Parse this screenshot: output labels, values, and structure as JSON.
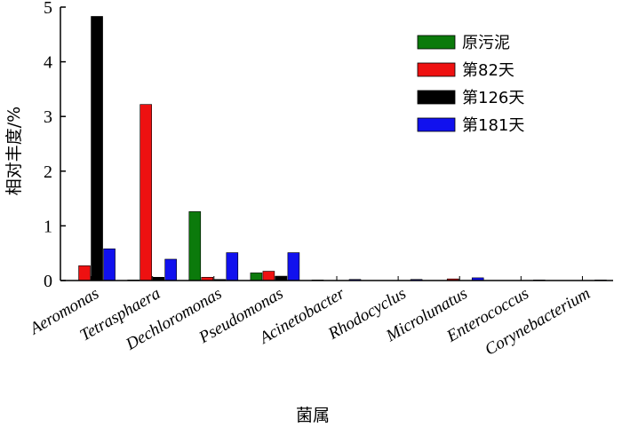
{
  "chart_data": {
    "type": "bar",
    "title": "",
    "xlabel": "菌属",
    "ylabel": "相对丰度/%",
    "ylim": [
      0,
      5
    ],
    "yticks": [
      "0",
      "1",
      "2",
      "3",
      "4",
      "5"
    ],
    "grid": false,
    "legend_position": "top-right",
    "categories": [
      "Aeromonas",
      "Tetrasphaera",
      "Dechloromonas",
      "Pseudomonas",
      "Acinetobacter",
      "Rhodocyclus",
      "Microlunatus",
      "Enterococcus",
      "Corynebacterium"
    ],
    "series": [
      {
        "name": "原污泥",
        "color": "#0b7a0b",
        "values": [
          0.0,
          0.01,
          1.26,
          0.14,
          0.01,
          0.0,
          0.0,
          0.0,
          0.0
        ]
      },
      {
        "name": "第82天",
        "color": "#ee1111",
        "values": [
          0.27,
          3.22,
          0.06,
          0.17,
          0.0,
          0.0,
          0.03,
          0.0,
          0.0
        ]
      },
      {
        "name": "第126天",
        "color": "#000000",
        "values": [
          4.83,
          0.06,
          0.02,
          0.08,
          0.0,
          0.0,
          0.0,
          0.0,
          0.0
        ]
      },
      {
        "name": "第181天",
        "color": "#1111ee",
        "values": [
          0.58,
          0.39,
          0.51,
          0.51,
          0.02,
          0.02,
          0.05,
          0.01,
          0.01
        ]
      }
    ]
  }
}
